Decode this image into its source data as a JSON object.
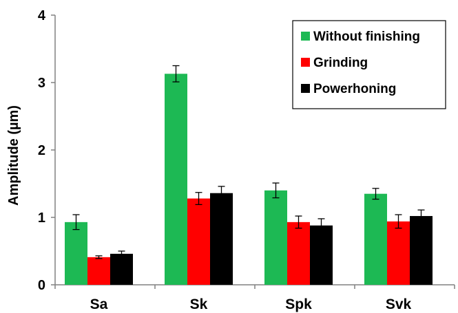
{
  "chart_data": {
    "type": "bar",
    "categories": [
      "Sa",
      "Sk",
      "Spk",
      "Svk"
    ],
    "ylabel": "Amplitude (µm)",
    "xlabel": "",
    "title": "",
    "ylim": [
      0,
      4
    ],
    "yticks": [
      "0",
      "1",
      "2",
      "3",
      "4"
    ],
    "grid": false,
    "legend_position": "top-right",
    "series": [
      {
        "name": "Without finishing",
        "color": "#1DB954",
        "values": [
          0.93,
          3.13,
          1.4,
          1.35
        ],
        "errors": [
          0.11,
          0.12,
          0.11,
          0.08
        ]
      },
      {
        "name": "Grinding",
        "color": "#FF0000",
        "values": [
          0.41,
          1.28,
          0.93,
          0.94
        ],
        "errors": [
          0.02,
          0.09,
          0.09,
          0.1
        ]
      },
      {
        "name": "Powerhoning",
        "color": "#000000",
        "values": [
          0.46,
          1.36,
          0.88,
          1.02
        ],
        "errors": [
          0.04,
          0.1,
          0.1,
          0.09
        ]
      }
    ]
  }
}
